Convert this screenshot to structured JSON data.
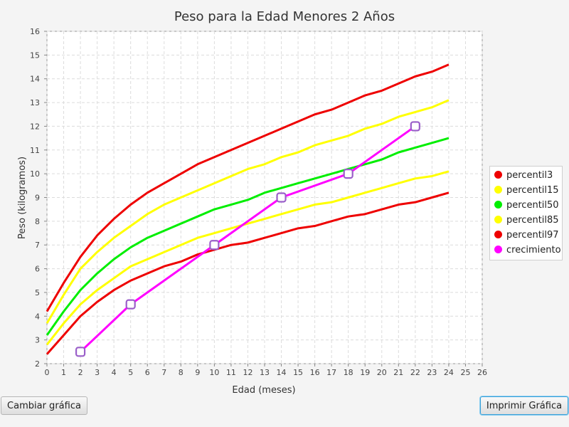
{
  "chart_data": {
    "type": "line",
    "title": "Peso para la Edad Menores 2 Años",
    "xlabel": "Edad (meses)",
    "ylabel": "Peso (kilogramos)",
    "xlim": [
      0,
      26
    ],
    "ylim": [
      2,
      16
    ],
    "xticks": [
      "0",
      "1",
      "2",
      "3",
      "4",
      "5",
      "6",
      "7",
      "8",
      "9",
      "10",
      "11",
      "12",
      "13",
      "14",
      "15",
      "16",
      "17",
      "18",
      "19",
      "20",
      "21",
      "22",
      "23",
      "24",
      "25",
      "26"
    ],
    "yticks": [
      "2",
      "3",
      "4",
      "5",
      "6",
      "7",
      "8",
      "9",
      "10",
      "11",
      "12",
      "13",
      "14",
      "15",
      "16"
    ],
    "grid": true,
    "legend_position": "right",
    "series": [
      {
        "name": "percentil3",
        "color": "#ee0000",
        "markers": false,
        "x": [
          0,
          1,
          2,
          3,
          4,
          5,
          6,
          7,
          8,
          9,
          10,
          11,
          12,
          13,
          14,
          15,
          16,
          17,
          18,
          19,
          20,
          21,
          22,
          23,
          24
        ],
        "y": [
          2.4,
          3.2,
          4.0,
          4.6,
          5.1,
          5.5,
          5.8,
          6.1,
          6.3,
          6.6,
          6.8,
          7.0,
          7.1,
          7.3,
          7.5,
          7.7,
          7.8,
          8.0,
          8.2,
          8.3,
          8.5,
          8.7,
          8.8,
          9.0,
          9.2
        ]
      },
      {
        "name": "percentil15",
        "color": "#ffff00",
        "markers": false,
        "x": [
          0,
          1,
          2,
          3,
          4,
          5,
          6,
          7,
          8,
          9,
          10,
          11,
          12,
          13,
          14,
          15,
          16,
          17,
          18,
          19,
          20,
          21,
          22,
          23,
          24
        ],
        "y": [
          2.8,
          3.7,
          4.5,
          5.1,
          5.6,
          6.1,
          6.4,
          6.7,
          7.0,
          7.3,
          7.5,
          7.7,
          7.9,
          8.1,
          8.3,
          8.5,
          8.7,
          8.8,
          9.0,
          9.2,
          9.4,
          9.6,
          9.8,
          9.9,
          10.1
        ]
      },
      {
        "name": "percentil50",
        "color": "#00ee00",
        "markers": false,
        "x": [
          0,
          1,
          2,
          3,
          4,
          5,
          6,
          7,
          8,
          9,
          10,
          11,
          12,
          13,
          14,
          15,
          16,
          17,
          18,
          19,
          20,
          21,
          22,
          23,
          24
        ],
        "y": [
          3.2,
          4.2,
          5.1,
          5.8,
          6.4,
          6.9,
          7.3,
          7.6,
          7.9,
          8.2,
          8.5,
          8.7,
          8.9,
          9.2,
          9.4,
          9.6,
          9.8,
          10.0,
          10.2,
          10.4,
          10.6,
          10.9,
          11.1,
          11.3,
          11.5
        ]
      },
      {
        "name": "percentil85",
        "color": "#ffff00",
        "markers": false,
        "x": [
          0,
          1,
          2,
          3,
          4,
          5,
          6,
          7,
          8,
          9,
          10,
          11,
          12,
          13,
          14,
          15,
          16,
          17,
          18,
          19,
          20,
          21,
          22,
          23,
          24
        ],
        "y": [
          3.7,
          4.9,
          6.0,
          6.7,
          7.3,
          7.8,
          8.3,
          8.7,
          9.0,
          9.3,
          9.6,
          9.9,
          10.2,
          10.4,
          10.7,
          10.9,
          11.2,
          11.4,
          11.6,
          11.9,
          12.1,
          12.4,
          12.6,
          12.8,
          13.1
        ]
      },
      {
        "name": "percentil97",
        "color": "#ee0000",
        "markers": false,
        "x": [
          0,
          1,
          2,
          3,
          4,
          5,
          6,
          7,
          8,
          9,
          10,
          11,
          12,
          13,
          14,
          15,
          16,
          17,
          18,
          19,
          20,
          21,
          22,
          23,
          24
        ],
        "y": [
          4.2,
          5.4,
          6.5,
          7.4,
          8.1,
          8.7,
          9.2,
          9.6,
          10.0,
          10.4,
          10.7,
          11.0,
          11.3,
          11.6,
          11.9,
          12.2,
          12.5,
          12.7,
          13.0,
          13.3,
          13.5,
          13.8,
          14.1,
          14.3,
          14.6
        ]
      },
      {
        "name": "crecimiento",
        "color": "#ff00ff",
        "markers": true,
        "marker_color": "#9a5fc9",
        "x": [
          2,
          5,
          10,
          14,
          18,
          22
        ],
        "y": [
          2.5,
          4.5,
          7.0,
          9.0,
          10.0,
          12.0
        ]
      }
    ]
  },
  "buttons": {
    "change_label": "Cambiar gráfica",
    "print_label": "Imprimir Gráfica"
  }
}
